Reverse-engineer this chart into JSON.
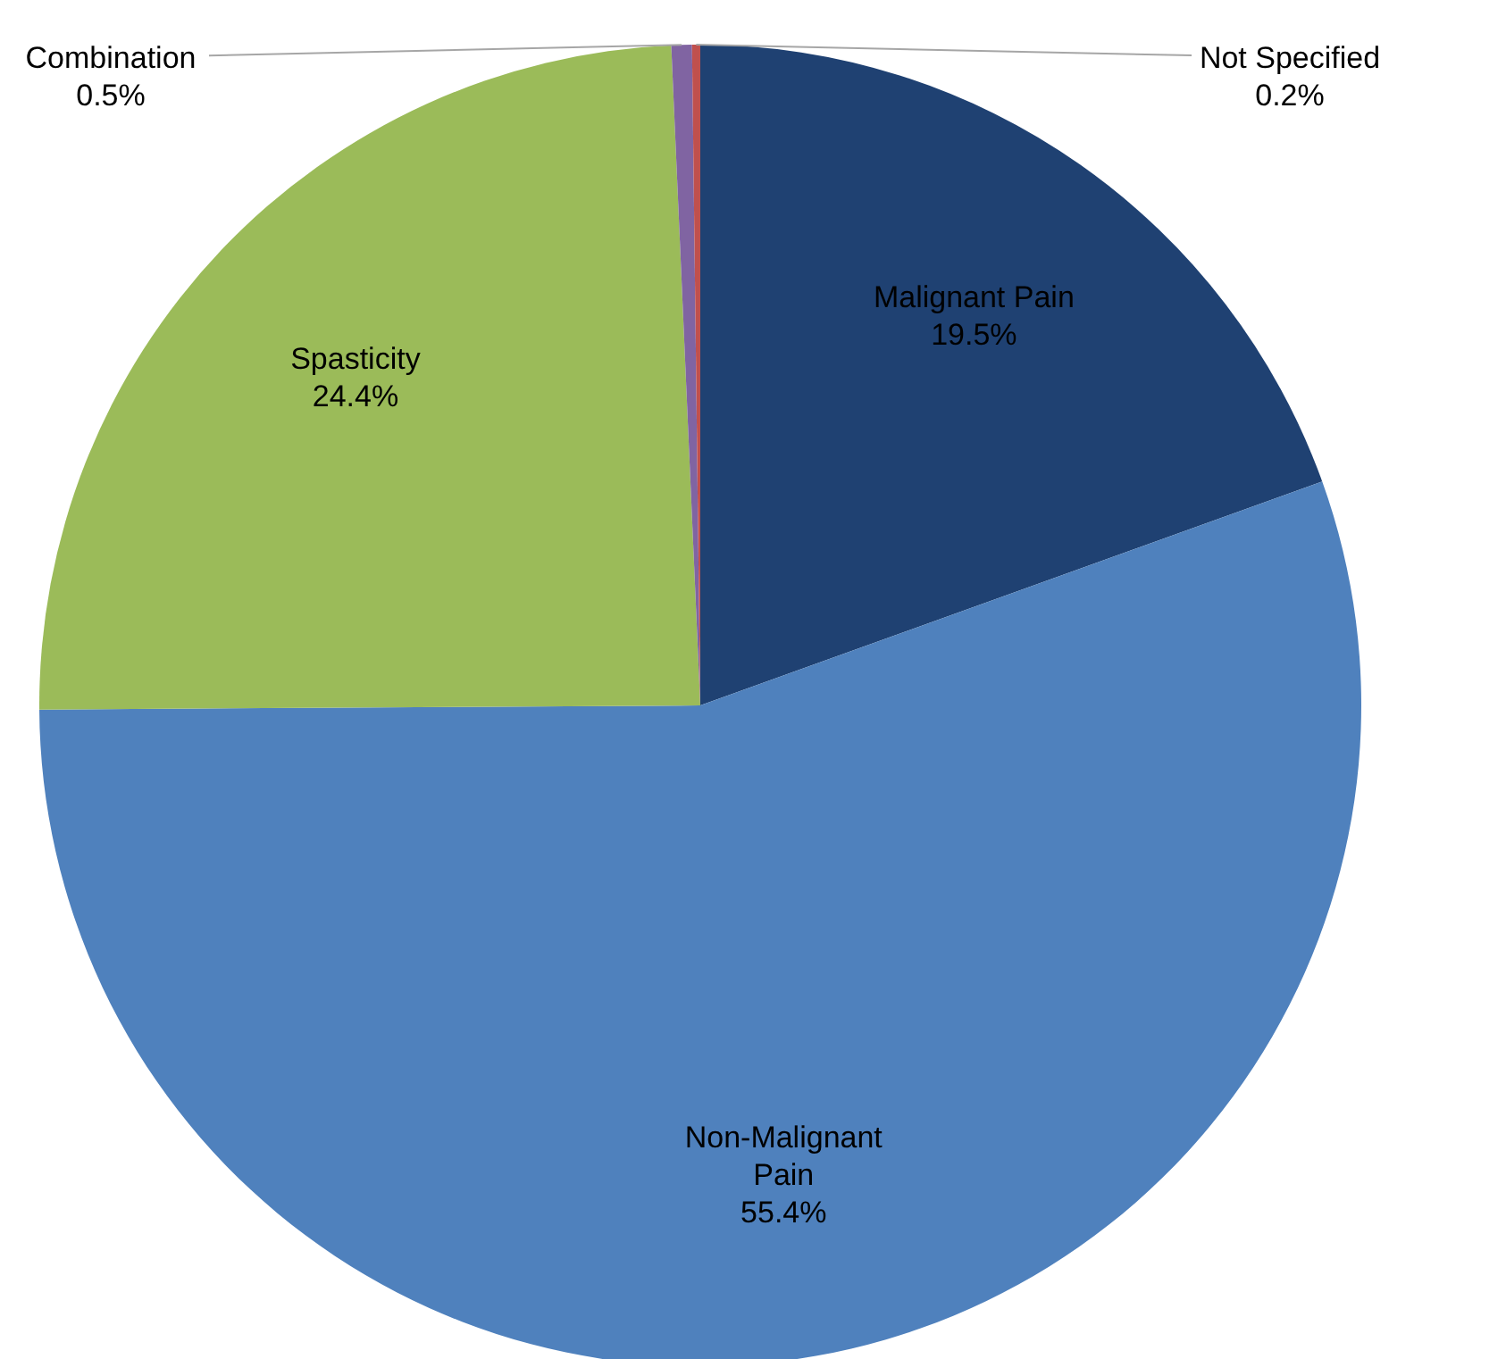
{
  "chart_data": {
    "type": "pie",
    "categories": [
      "Malignant Pain",
      "Non-Malignant Pain",
      "Spasticity",
      "Combination",
      "Not Specified"
    ],
    "values": [
      19.5,
      55.4,
      24.4,
      0.5,
      0.2
    ],
    "colors": [
      "#1f4172",
      "#4f81bd",
      "#9bbb59",
      "#8064a2",
      "#c0504d"
    ],
    "value_labels": [
      "19.5%",
      "55.4%",
      "24.4%",
      "0.5%",
      "0.2%"
    ]
  }
}
